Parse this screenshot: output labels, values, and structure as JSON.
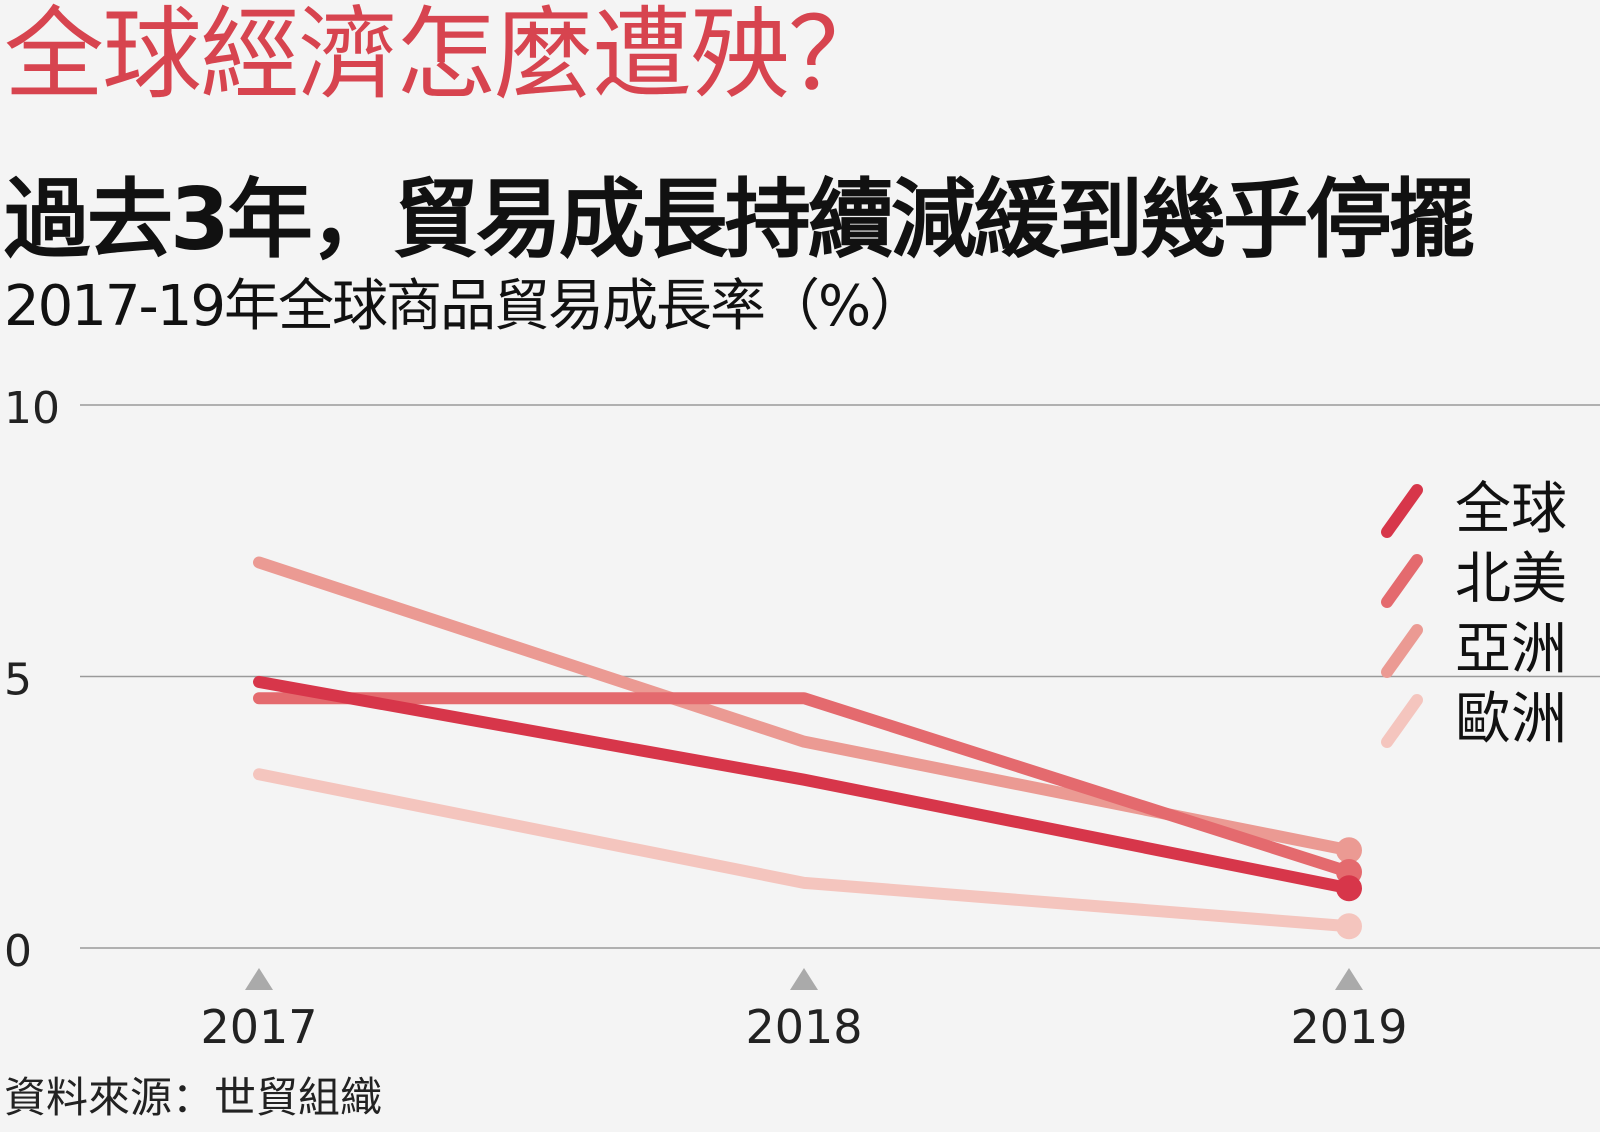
{
  "kicker": "全球經濟怎麼遭殃？",
  "headline": "過去3年，貿易成長持續減緩到幾乎停擺",
  "subtitle": "2017-19年全球商品貿易成長率（%）",
  "source": "資料來源：世貿組織",
  "colors": {
    "background": "#f4f4f4",
    "kicker": "#d7444f",
    "gridline": "#9a9a9a",
    "year_marker": "#aaaaaa"
  },
  "chart_data": {
    "type": "line",
    "title": "2017-19年全球商品貿易成長率（%）",
    "x": [
      "2017",
      "2018",
      "2019"
    ],
    "ylim": [
      0,
      10
    ],
    "yticks": [
      "0",
      "5",
      "10"
    ],
    "grid": true,
    "legend_position": "right",
    "series": [
      {
        "name": "全球",
        "values": [
          4.9,
          3.1,
          1.1
        ],
        "color": "#d7364a"
      },
      {
        "name": "北美",
        "values": [
          4.6,
          4.6,
          1.4
        ],
        "color": "#e46a6e"
      },
      {
        "name": "亞洲",
        "values": [
          7.1,
          3.8,
          1.8
        ],
        "color": "#eb9a93"
      },
      {
        "name": "歐洲",
        "values": [
          3.2,
          1.2,
          0.4
        ],
        "color": "#f4c5be"
      }
    ]
  }
}
